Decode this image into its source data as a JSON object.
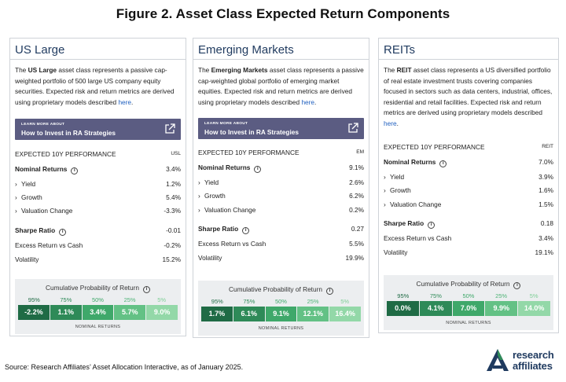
{
  "figure_title": "Figure 2. Asset Class Expected Return Components",
  "source": "Source: Research Affiliates’ Asset Allocation Interactive, as of January 2025.",
  "logo": {
    "line1": "research",
    "line2": "affiliates",
    "reg": "®"
  },
  "learn_more": {
    "small": "LEARN MORE ABOUT",
    "big": "How to Invest in RA Strategies"
  },
  "perf_header": "EXPECTED 10Y PERFORMANCE",
  "row_labels": {
    "nominal": "Nominal Returns",
    "yield": "Yield",
    "growth": "Growth",
    "valuation": "Valuation Change",
    "sharpe": "Sharpe Ratio",
    "excess": "Excess Return vs Cash",
    "volatility": "Volatility"
  },
  "prob_title": "Cumulative Probability of Return",
  "nominal_returns_label": "NOMINAL RETURNS",
  "percentiles": [
    "95%",
    "75%",
    "50%",
    "25%",
    "5%"
  ],
  "colors": {
    "bar": [
      "#1f6b45",
      "#2e8a58",
      "#3fa86a",
      "#63c185",
      "#93d8a8"
    ],
    "pct": [
      "#1f6b45",
      "#2e8a58",
      "#3fa86a",
      "#63c185",
      "#93d8a8"
    ],
    "learn": "#5b5c82"
  },
  "cards": [
    {
      "title": "US Large",
      "desc_pre": "The ",
      "desc_bold": "US Large",
      "desc_post": " asset class represents a passive cap-weighted portfolio of 500 large US company equity securities. Expected risk and return metrics are derived using proprietary models described ",
      "desc_link": "here",
      "desc_end": ".",
      "code": "USL",
      "nominal": "3.4%",
      "yield": "1.2%",
      "growth": "5.4%",
      "valuation": "-3.3%",
      "sharpe": "-0.01",
      "excess": "-0.2%",
      "volatility": "15.2%",
      "probs": [
        "-2.2%",
        "1.1%",
        "3.4%",
        "5.7%",
        "9.0%"
      ]
    },
    {
      "title": "Emerging Markets",
      "desc_pre": "The ",
      "desc_bold": "Emerging Markets",
      "desc_post": " asset class represents a passive cap-weighted global portfolio of emerging market equities. Expected risk and return metrics are derived using proprietary models described ",
      "desc_link": "here",
      "desc_end": ".",
      "code": "EM",
      "nominal": "9.1%",
      "yield": "2.6%",
      "growth": "6.2%",
      "valuation": "0.2%",
      "sharpe": "0.27",
      "excess": "5.5%",
      "volatility": "19.9%",
      "probs": [
        "1.7%",
        "6.1%",
        "9.1%",
        "12.1%",
        "16.4%"
      ]
    },
    {
      "title": "REITs",
      "desc_pre": "The ",
      "desc_bold": "REIT",
      "desc_post": " asset class represents a US diversified portfolio of real estate investment trusts covering companies focused in sectors such as data centers, industrial, offices, residential and retail facilities. Expected risk and return metrics are derived using proprietary models described ",
      "desc_link": "here",
      "desc_end": ".",
      "code": "REIT",
      "nominal": "7.0%",
      "yield": "3.9%",
      "growth": "1.6%",
      "valuation": "1.5%",
      "sharpe": "0.18",
      "excess": "3.4%",
      "volatility": "19.1%",
      "probs": [
        "0.0%",
        "4.1%",
        "7.0%",
        "9.9%",
        "14.0%"
      ]
    }
  ]
}
